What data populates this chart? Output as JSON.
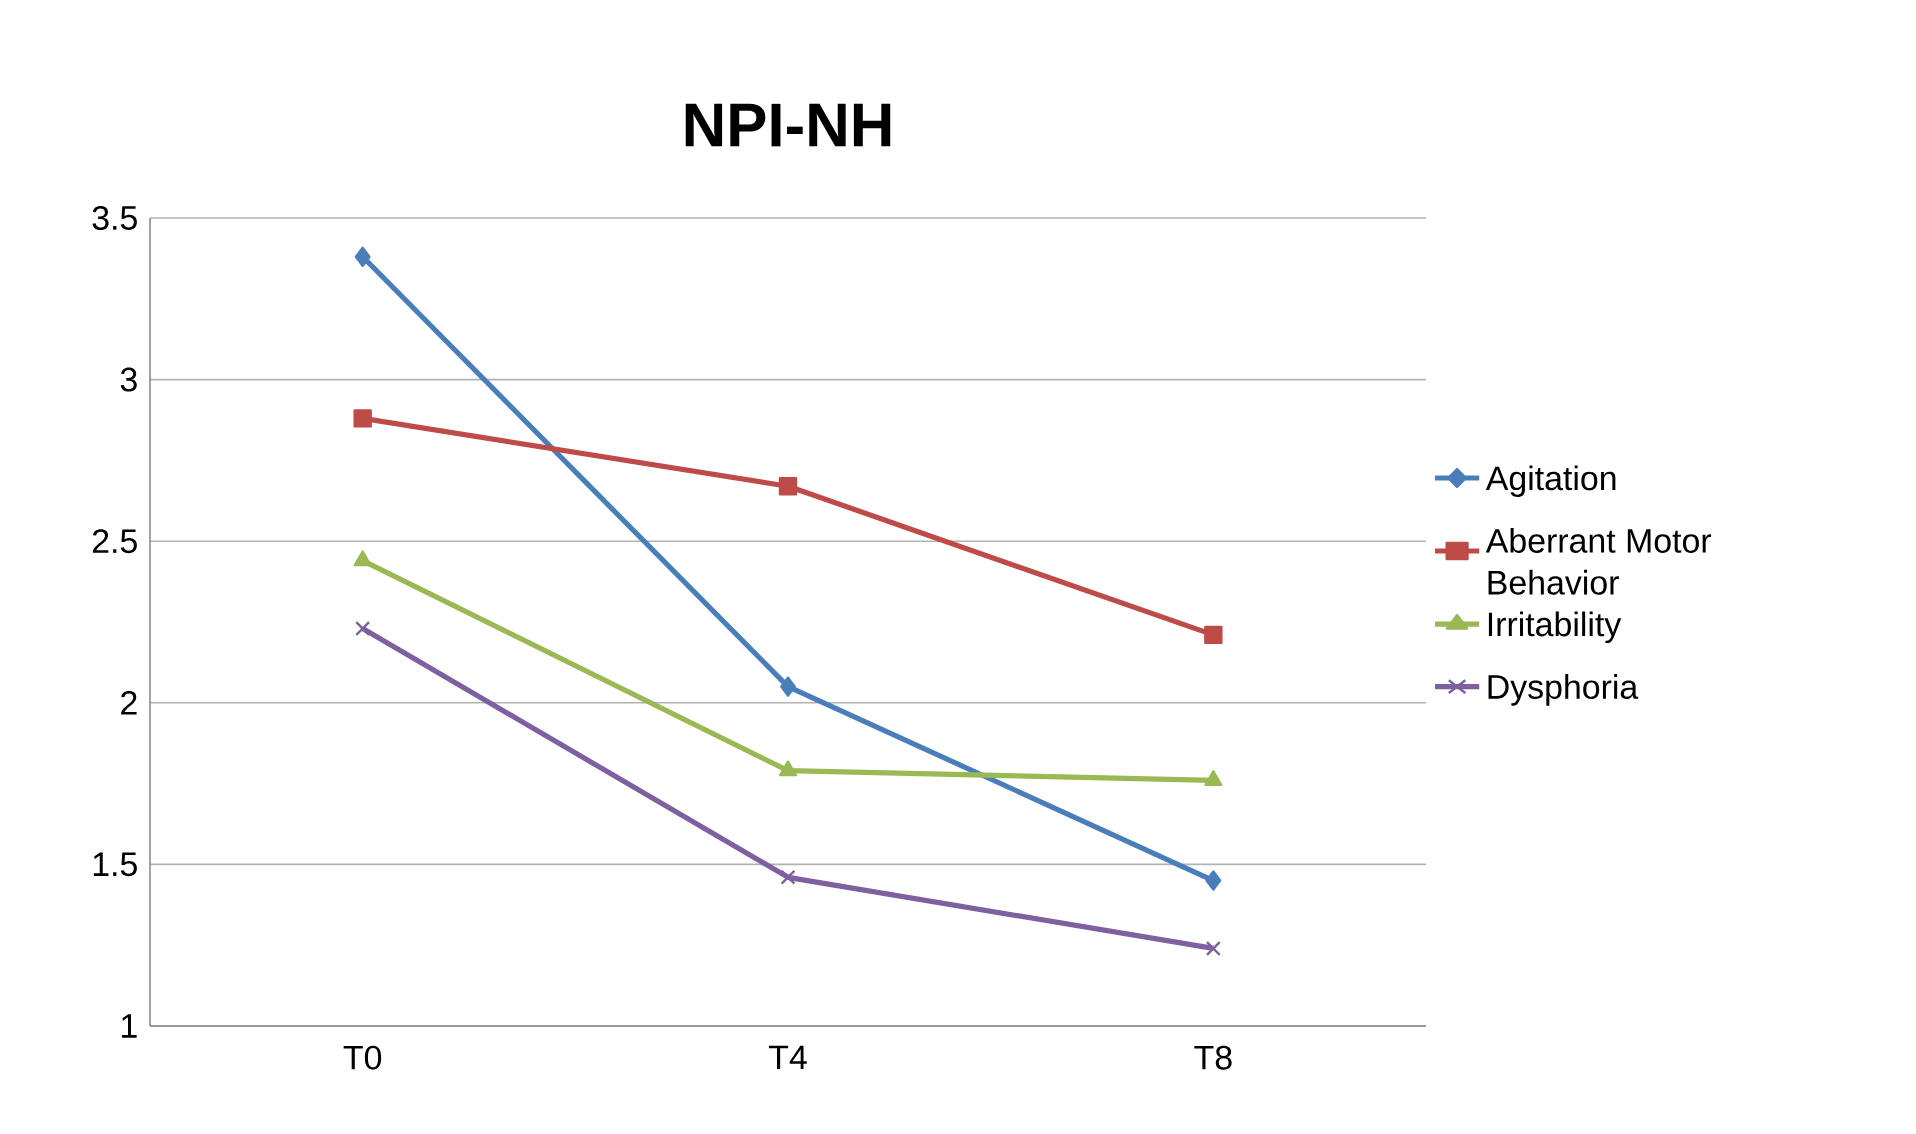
{
  "chart_data": {
    "type": "line",
    "title": "NPI-NH",
    "categories": [
      "T0",
      "T4",
      "T8"
    ],
    "series": [
      {
        "name": "Agitation",
        "color": "#4a7ebb",
        "marker": "diamond",
        "values": [
          3.38,
          2.05,
          1.45
        ]
      },
      {
        "name": "Aberrant Motor Behavior",
        "color": "#be4b48",
        "marker": "square",
        "values": [
          2.88,
          2.67,
          2.21
        ]
      },
      {
        "name": "Irritability",
        "color": "#98b954",
        "marker": "triangle",
        "values": [
          2.44,
          1.79,
          1.76
        ]
      },
      {
        "name": "Dysphoria",
        "color": "#7d60a0",
        "marker": "cross",
        "values": [
          2.23,
          1.46,
          1.24
        ]
      }
    ],
    "ylim": [
      1,
      3.5
    ],
    "yticks": [
      1,
      1.5,
      2,
      2.5,
      3,
      3.5
    ],
    "grid": "y",
    "legend": "right",
    "line_style": "solid"
  }
}
